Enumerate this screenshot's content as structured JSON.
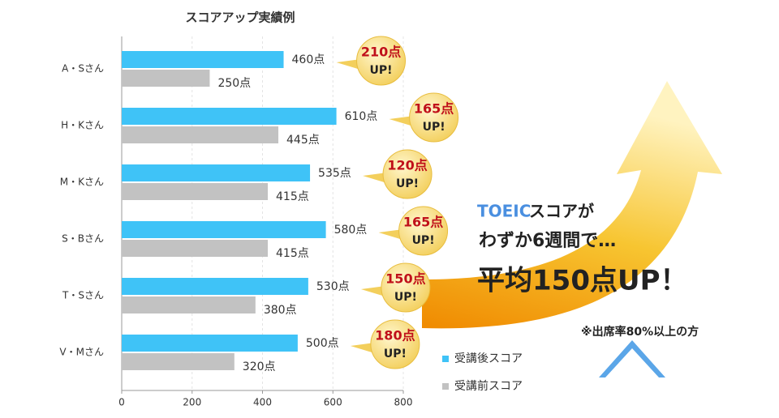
{
  "chart_data": {
    "type": "bar",
    "orientation": "horizontal",
    "title": "スコアアップ実績例",
    "categories": [
      "A・Sさん",
      "H・Kさん",
      "M・Kさん",
      "S・Bさん",
      "T・Sさん",
      "V・Mさん"
    ],
    "series": [
      {
        "name": "受講後スコア",
        "color": "#3fc3f7",
        "values": [
          460,
          610,
          535,
          580,
          530,
          500
        ],
        "value_labels": [
          "460点",
          "610点",
          "535点",
          "580点",
          "530点",
          "500点"
        ]
      },
      {
        "name": "受講前スコア",
        "color": "#c2c2c2",
        "values": [
          250,
          445,
          415,
          415,
          380,
          320
        ],
        "value_labels": [
          "250点",
          "445点",
          "415点",
          "415点",
          "380点",
          "320点"
        ]
      }
    ],
    "gains": {
      "values": [
        210,
        165,
        120,
        165,
        150,
        180
      ],
      "value_labels": [
        "210点",
        "165点",
        "120点",
        "165点",
        "150点",
        "180点"
      ],
      "suffix": "UP!"
    },
    "xlim": [
      0,
      800
    ],
    "xticks": [
      0,
      200,
      400,
      600,
      800
    ],
    "grid": true,
    "annotations": [
      "TOEIC",
      "スコアが",
      "わずか6週間で…",
      "平均150点UP！",
      "※出席率80%以上の方"
    ]
  }
}
